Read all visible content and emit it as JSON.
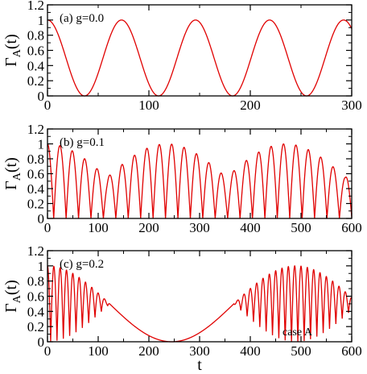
{
  "chart_data": [
    {
      "type": "line",
      "panel_label": "(a)  g=0.0",
      "ylabel_main": "Γ",
      "ylabel_sub": "A",
      "ylabel_tail": "(t)",
      "xlim": [
        0,
        300
      ],
      "ylim": [
        0,
        1.2
      ],
      "xticks": [
        "0",
        "100",
        "200",
        "300"
      ],
      "yticks": [
        "0",
        "0.2",
        "0.4",
        "0.6",
        "0.8",
        "1",
        "1.2"
      ],
      "series": [
        {
          "color": "#e00000",
          "model": {
            "g": 0.0,
            "fast_period": 73,
            "envelope_period": 600,
            "envelope_phase": 0.0
          }
        }
      ]
    },
    {
      "type": "line",
      "panel_label": "(b)  g=0.1",
      "ylabel_main": "Γ",
      "ylabel_sub": "A",
      "ylabel_tail": "(t)",
      "xlim": [
        0,
        600
      ],
      "ylim": [
        0,
        1.2
      ],
      "xticks": [
        "0",
        "100",
        "200",
        "300",
        "400",
        "500",
        "600"
      ],
      "yticks": [
        "0",
        "0.2",
        "0.4",
        "0.6",
        "0.8",
        "1",
        "1.2"
      ],
      "series": [
        {
          "color": "#e00000",
          "model": {
            "g": 0.1,
            "fast_period": 24.5,
            "envelope_period": 470,
            "envelope_phase": 0.0
          }
        }
      ]
    },
    {
      "type": "line",
      "panel_label": "(c)  g=0.2",
      "annotation": "case A",
      "ylabel_main": "Γ",
      "ylabel_sub": "A",
      "ylabel_tail": "(t)",
      "xlabel": "t",
      "xlim": [
        0,
        600
      ],
      "ylim": [
        0,
        1.2
      ],
      "xticks": [
        "0",
        "100",
        "200",
        "300",
        "400",
        "500",
        "600"
      ],
      "yticks": [
        "0",
        "0.2",
        "0.4",
        "0.6",
        "0.8",
        "1",
        "1.2"
      ],
      "series": [
        {
          "color": "#e00000",
          "model": {
            "g": 0.2,
            "fast_period": 12.5,
            "envelope_period": 490,
            "envelope_phase": 0.0
          }
        }
      ]
    }
  ]
}
